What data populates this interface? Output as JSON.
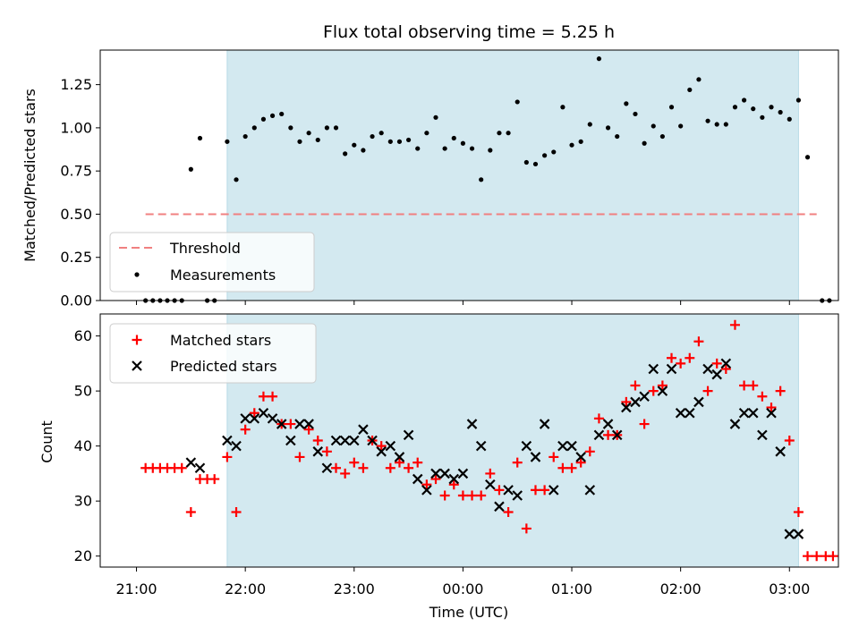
{
  "chart_data": [
    {
      "type": "scatter",
      "panel": "top",
      "title": "Flux total observing time = 5.25 h",
      "ylabel": "Matched/Predicted stars",
      "ylim": [
        0,
        1.45
      ],
      "yticks": [
        "0.00",
        "0.25",
        "0.50",
        "0.75",
        "1.00",
        "1.25"
      ],
      "shaded_interval": [
        "21:50",
        "03:05"
      ],
      "shade_color": "#d3e9f0",
      "legend": {
        "placement": "lower-left",
        "entries": [
          "Threshold",
          "Measurements"
        ]
      },
      "threshold": {
        "name": "Threshold",
        "value": 0.5,
        "x_range": [
          "21:05",
          "03:15"
        ],
        "color": "#f08080",
        "style": "dashed"
      },
      "series": [
        {
          "name": "Measurements",
          "color": "#000000",
          "points": [
            [
              "21:05",
              0.0
            ],
            [
              "21:09",
              0.0
            ],
            [
              "21:13",
              0.0
            ],
            [
              "21:17",
              0.0
            ],
            [
              "21:21",
              0.0
            ],
            [
              "21:25",
              0.0
            ],
            [
              "21:30",
              0.76
            ],
            [
              "21:35",
              0.94
            ],
            [
              "21:39",
              0.0
            ],
            [
              "21:43",
              0.0
            ],
            [
              "21:50",
              0.92
            ],
            [
              "21:55",
              0.7
            ],
            [
              "22:00",
              0.95
            ],
            [
              "22:05",
              1.0
            ],
            [
              "22:10",
              1.05
            ],
            [
              "22:15",
              1.07
            ],
            [
              "22:20",
              1.08
            ],
            [
              "22:25",
              1.0
            ],
            [
              "22:30",
              0.92
            ],
            [
              "22:35",
              0.97
            ],
            [
              "22:40",
              0.93
            ],
            [
              "22:45",
              1.0
            ],
            [
              "22:50",
              1.0
            ],
            [
              "22:55",
              0.85
            ],
            [
              "23:00",
              0.9
            ],
            [
              "23:05",
              0.87
            ],
            [
              "23:10",
              0.95
            ],
            [
              "23:15",
              0.97
            ],
            [
              "23:20",
              0.92
            ],
            [
              "23:25",
              0.92
            ],
            [
              "23:30",
              0.93
            ],
            [
              "23:35",
              0.88
            ],
            [
              "23:40",
              0.97
            ],
            [
              "23:45",
              1.06
            ],
            [
              "23:50",
              0.88
            ],
            [
              "23:55",
              0.94
            ],
            [
              "00:00",
              0.91
            ],
            [
              "00:05",
              0.88
            ],
            [
              "00:10",
              0.7
            ],
            [
              "00:15",
              0.87
            ],
            [
              "00:20",
              0.97
            ],
            [
              "00:25",
              0.97
            ],
            [
              "00:30",
              1.15
            ],
            [
              "00:35",
              0.8
            ],
            [
              "00:40",
              0.79
            ],
            [
              "00:45",
              0.84
            ],
            [
              "00:50",
              0.86
            ],
            [
              "00:55",
              1.12
            ],
            [
              "01:00",
              0.9
            ],
            [
              "01:05",
              0.92
            ],
            [
              "01:10",
              1.02
            ],
            [
              "01:15",
              1.4
            ],
            [
              "01:20",
              1.0
            ],
            [
              "01:25",
              0.95
            ],
            [
              "01:30",
              1.14
            ],
            [
              "01:35",
              1.08
            ],
            [
              "01:40",
              0.91
            ],
            [
              "01:45",
              1.01
            ],
            [
              "01:50",
              0.95
            ],
            [
              "01:55",
              1.12
            ],
            [
              "02:00",
              1.01
            ],
            [
              "02:05",
              1.22
            ],
            [
              "02:10",
              1.28
            ],
            [
              "02:15",
              1.04
            ],
            [
              "02:20",
              1.02
            ],
            [
              "02:25",
              1.02
            ],
            [
              "02:30",
              1.12
            ],
            [
              "02:35",
              1.16
            ],
            [
              "02:40",
              1.11
            ],
            [
              "02:45",
              1.06
            ],
            [
              "02:50",
              1.12
            ],
            [
              "02:55",
              1.09
            ],
            [
              "03:00",
              1.05
            ],
            [
              "03:05",
              1.16
            ],
            [
              "03:10",
              0.83
            ],
            [
              "03:18",
              0.0
            ],
            [
              "03:22",
              0.0
            ]
          ]
        }
      ]
    },
    {
      "type": "scatter",
      "panel": "bottom",
      "xlabel": "Time (UTC)",
      "ylabel": "Count",
      "ylim": [
        18,
        64
      ],
      "yticks": [
        "20",
        "30",
        "40",
        "50",
        "60"
      ],
      "xticks": [
        "21:00",
        "22:00",
        "23:00",
        "00:00",
        "01:00",
        "02:00",
        "03:00"
      ],
      "shaded_interval": [
        "21:50",
        "03:05"
      ],
      "legend": {
        "placement": "upper-left",
        "entries": [
          "Matched stars",
          "Predicted stars"
        ]
      },
      "series": [
        {
          "name": "Matched stars",
          "marker": "plus",
          "color": "#ff0000",
          "points": [
            [
              "21:05",
              36
            ],
            [
              "21:09",
              36
            ],
            [
              "21:13",
              36
            ],
            [
              "21:17",
              36
            ],
            [
              "21:21",
              36
            ],
            [
              "21:25",
              36
            ],
            [
              "21:30",
              28
            ],
            [
              "21:35",
              34
            ],
            [
              "21:39",
              34
            ],
            [
              "21:43",
              34
            ],
            [
              "21:50",
              38
            ],
            [
              "21:55",
              28
            ],
            [
              "22:00",
              43
            ],
            [
              "22:05",
              46
            ],
            [
              "22:10",
              49
            ],
            [
              "22:15",
              49
            ],
            [
              "22:20",
              44
            ],
            [
              "22:25",
              44
            ],
            [
              "22:30",
              38
            ],
            [
              "22:35",
              43
            ],
            [
              "22:40",
              41
            ],
            [
              "22:45",
              39
            ],
            [
              "22:50",
              36
            ],
            [
              "22:55",
              35
            ],
            [
              "23:00",
              37
            ],
            [
              "23:05",
              36
            ],
            [
              "23:10",
              41
            ],
            [
              "23:15",
              40
            ],
            [
              "23:20",
              36
            ],
            [
              "23:25",
              37
            ],
            [
              "23:30",
              36
            ],
            [
              "23:35",
              37
            ],
            [
              "23:40",
              33
            ],
            [
              "23:45",
              34
            ],
            [
              "23:50",
              31
            ],
            [
              "23:55",
              33
            ],
            [
              "00:00",
              31
            ],
            [
              "00:05",
              31
            ],
            [
              "00:10",
              31
            ],
            [
              "00:15",
              35
            ],
            [
              "00:20",
              32
            ],
            [
              "00:25",
              28
            ],
            [
              "00:30",
              37
            ],
            [
              "00:35",
              25
            ],
            [
              "00:40",
              32
            ],
            [
              "00:45",
              32
            ],
            [
              "00:50",
              38
            ],
            [
              "00:55",
              36
            ],
            [
              "01:00",
              36
            ],
            [
              "01:05",
              37
            ],
            [
              "01:10",
              39
            ],
            [
              "01:15",
              45
            ],
            [
              "01:20",
              42
            ],
            [
              "01:25",
              42
            ],
            [
              "01:30",
              48
            ],
            [
              "01:35",
              51
            ],
            [
              "01:40",
              44
            ],
            [
              "01:45",
              50
            ],
            [
              "01:50",
              51
            ],
            [
              "01:55",
              56
            ],
            [
              "02:00",
              55
            ],
            [
              "02:05",
              56
            ],
            [
              "02:10",
              59
            ],
            [
              "02:15",
              50
            ],
            [
              "02:20",
              55
            ],
            [
              "02:25",
              54
            ],
            [
              "02:30",
              62
            ],
            [
              "02:35",
              51
            ],
            [
              "02:40",
              51
            ],
            [
              "02:45",
              49
            ],
            [
              "02:50",
              47
            ],
            [
              "02:55",
              50
            ],
            [
              "03:00",
              41
            ],
            [
              "03:05",
              28
            ],
            [
              "03:10",
              20
            ],
            [
              "03:15",
              20
            ],
            [
              "03:20",
              20
            ],
            [
              "03:24",
              20
            ]
          ]
        },
        {
          "name": "Predicted stars",
          "marker": "x",
          "color": "#000000",
          "points": [
            [
              "21:30",
              37
            ],
            [
              "21:35",
              36
            ],
            [
              "21:50",
              41
            ],
            [
              "21:55",
              40
            ],
            [
              "22:00",
              45
            ],
            [
              "22:05",
              45
            ],
            [
              "22:10",
              46
            ],
            [
              "22:15",
              45
            ],
            [
              "22:20",
              44
            ],
            [
              "22:25",
              41
            ],
            [
              "22:30",
              44
            ],
            [
              "22:35",
              44
            ],
            [
              "22:40",
              39
            ],
            [
              "22:45",
              36
            ],
            [
              "22:50",
              41
            ],
            [
              "22:55",
              41
            ],
            [
              "23:00",
              41
            ],
            [
              "23:05",
              43
            ],
            [
              "23:10",
              41
            ],
            [
              "23:15",
              39
            ],
            [
              "23:20",
              40
            ],
            [
              "23:25",
              38
            ],
            [
              "23:30",
              42
            ],
            [
              "23:35",
              34
            ],
            [
              "23:40",
              32
            ],
            [
              "23:45",
              35
            ],
            [
              "23:50",
              35
            ],
            [
              "23:55",
              34
            ],
            [
              "00:00",
              35
            ],
            [
              "00:05",
              44
            ],
            [
              "00:10",
              40
            ],
            [
              "00:15",
              33
            ],
            [
              "00:20",
              29
            ],
            [
              "00:25",
              32
            ],
            [
              "00:30",
              31
            ],
            [
              "00:35",
              40
            ],
            [
              "00:40",
              38
            ],
            [
              "00:45",
              44
            ],
            [
              "00:50",
              32
            ],
            [
              "00:55",
              40
            ],
            [
              "01:00",
              40
            ],
            [
              "01:05",
              38
            ],
            [
              "01:10",
              32
            ],
            [
              "01:15",
              42
            ],
            [
              "01:20",
              44
            ],
            [
              "01:25",
              42
            ],
            [
              "01:30",
              47
            ],
            [
              "01:35",
              48
            ],
            [
              "01:40",
              49
            ],
            [
              "01:45",
              54
            ],
            [
              "01:50",
              50
            ],
            [
              "01:55",
              54
            ],
            [
              "02:00",
              46
            ],
            [
              "02:05",
              46
            ],
            [
              "02:10",
              48
            ],
            [
              "02:15",
              54
            ],
            [
              "02:20",
              53
            ],
            [
              "02:25",
              55
            ],
            [
              "02:30",
              44
            ],
            [
              "02:35",
              46
            ],
            [
              "02:40",
              46
            ],
            [
              "02:45",
              42
            ],
            [
              "02:50",
              46
            ],
            [
              "02:55",
              39
            ],
            [
              "03:00",
              24
            ],
            [
              "03:05",
              24
            ]
          ]
        }
      ]
    }
  ]
}
